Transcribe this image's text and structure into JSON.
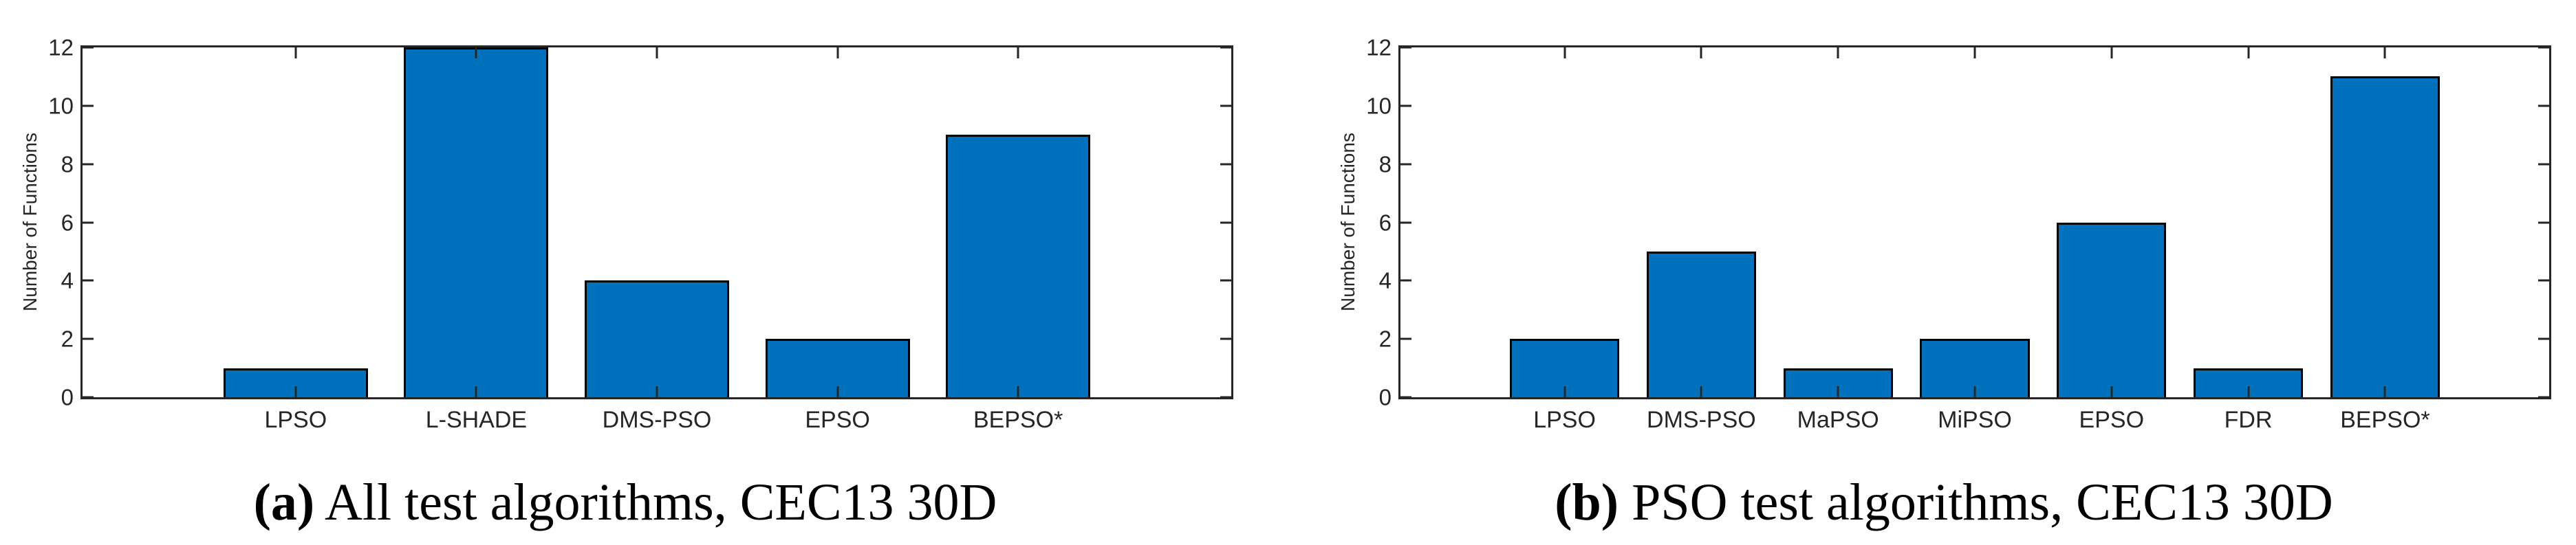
{
  "chart_data": [
    {
      "type": "bar",
      "panel": "a",
      "title": "",
      "caption_tag": "(a)",
      "caption_text": "All test algorithms, CEC13 30D",
      "xlabel": "",
      "ylabel": "Number of Functions",
      "categories": [
        "LPSO",
        "L-SHADE",
        "DMS-PSO",
        "EPSO",
        "BEPSO*"
      ],
      "values": [
        1,
        12,
        4,
        2,
        9
      ],
      "ylim": [
        0,
        12
      ],
      "yticks": [
        0,
        2,
        4,
        6,
        8,
        10,
        12
      ],
      "grid": false,
      "legend": null,
      "bar_color": "#0072BD",
      "edge_color": "#000000"
    },
    {
      "type": "bar",
      "panel": "b",
      "title": "",
      "caption_tag": "(b)",
      "caption_text": "PSO test algorithms, CEC13 30D",
      "xlabel": "",
      "ylabel": "Number of Functions",
      "categories": [
        "LPSO",
        "DMS-PSO",
        "MaPSO",
        "MiPSO",
        "EPSO",
        "FDR",
        "BEPSO*"
      ],
      "values": [
        2,
        5,
        1,
        2,
        6,
        1,
        11
      ],
      "ylim": [
        0,
        12
      ],
      "yticks": [
        0,
        2,
        4,
        6,
        8,
        10,
        12
      ],
      "grid": false,
      "legend": null,
      "bar_color": "#0072BD",
      "edge_color": "#000000"
    }
  ],
  "panels": [
    {
      "caption": {
        "tag": "(a)",
        "text": "All test algorithms, CEC13 30D"
      },
      "ylabel": "Number of Functions"
    },
    {
      "caption": {
        "tag": "(b)",
        "text": "PSO test algorithms, CEC13 30D"
      },
      "ylabel": "Number of Functions"
    }
  ]
}
